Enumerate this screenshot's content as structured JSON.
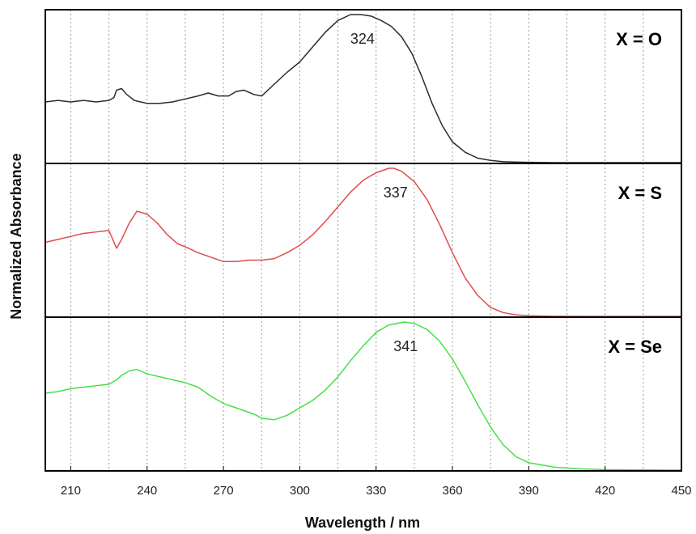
{
  "chart_data": {
    "type": "line",
    "xlabel": "Wavelength / nm",
    "ylabel": "Normalized Absorbance",
    "xlim": [
      200,
      450
    ],
    "xticks": [
      210,
      240,
      270,
      300,
      330,
      360,
      390,
      420,
      450
    ],
    "grid": {
      "vertical_dotted": true,
      "x_positions": [
        210,
        225,
        240,
        255,
        270,
        285,
        300,
        315,
        330,
        345,
        360,
        375,
        390,
        405,
        420,
        435
      ]
    },
    "panels": [
      {
        "label": "X = O",
        "color": "#2b2b2b",
        "peak_label": "324",
        "peak_x": 324,
        "ylim": [
          0,
          1
        ],
        "x": [
          200,
          205,
          210,
          215,
          220,
          225,
          227,
          228,
          230,
          232,
          235,
          240,
          245,
          250,
          255,
          260,
          264,
          268,
          272,
          275,
          278,
          282,
          285,
          290,
          295,
          300,
          305,
          310,
          315,
          320,
          324,
          328,
          332,
          336,
          340,
          344,
          348,
          352,
          356,
          360,
          365,
          370,
          375,
          380,
          390,
          400,
          420,
          450
        ],
        "y": [
          0.41,
          0.42,
          0.41,
          0.42,
          0.41,
          0.42,
          0.44,
          0.49,
          0.5,
          0.46,
          0.42,
          0.4,
          0.4,
          0.41,
          0.43,
          0.45,
          0.47,
          0.45,
          0.45,
          0.48,
          0.49,
          0.46,
          0.45,
          0.53,
          0.61,
          0.68,
          0.78,
          0.88,
          0.96,
          1.0,
          1.0,
          0.99,
          0.96,
          0.92,
          0.85,
          0.74,
          0.58,
          0.4,
          0.25,
          0.14,
          0.07,
          0.03,
          0.015,
          0.006,
          0.002,
          0.0,
          0.0,
          0.0
        ]
      },
      {
        "label": "X = S",
        "color": "#e04c4c",
        "peak_label": "337",
        "peak_x": 337,
        "ylim": [
          0,
          1
        ],
        "x": [
          200,
          205,
          210,
          215,
          220,
          225,
          227,
          228,
          230,
          233,
          236,
          240,
          244,
          248,
          252,
          255,
          260,
          265,
          270,
          275,
          280,
          285,
          290,
          295,
          300,
          305,
          310,
          315,
          320,
          325,
          330,
          335,
          337,
          340,
          345,
          350,
          355,
          360,
          365,
          370,
          375,
          380,
          385,
          390,
          400,
          420,
          450
        ],
        "y": [
          0.5,
          0.52,
          0.54,
          0.56,
          0.57,
          0.58,
          0.5,
          0.46,
          0.52,
          0.63,
          0.71,
          0.69,
          0.63,
          0.55,
          0.49,
          0.47,
          0.43,
          0.4,
          0.37,
          0.37,
          0.38,
          0.38,
          0.39,
          0.43,
          0.48,
          0.55,
          0.64,
          0.74,
          0.84,
          0.92,
          0.97,
          1.0,
          1.0,
          0.98,
          0.91,
          0.79,
          0.62,
          0.43,
          0.26,
          0.14,
          0.06,
          0.025,
          0.01,
          0.004,
          0.001,
          0.0,
          0.0
        ]
      },
      {
        "label": "X = Se",
        "color": "#46e046",
        "peak_label": "341",
        "peak_x": 341,
        "ylim": [
          0,
          1
        ],
        "x": [
          200,
          205,
          210,
          215,
          220,
          225,
          228,
          230,
          233,
          236,
          240,
          245,
          250,
          255,
          260,
          265,
          270,
          275,
          280,
          283,
          285,
          290,
          295,
          300,
          305,
          310,
          315,
          320,
          325,
          330,
          335,
          341,
          345,
          350,
          355,
          360,
          365,
          370,
          375,
          380,
          385,
          390,
          400,
          410,
          420,
          450
        ],
        "y": [
          0.52,
          0.53,
          0.55,
          0.56,
          0.57,
          0.58,
          0.61,
          0.64,
          0.67,
          0.68,
          0.65,
          0.63,
          0.61,
          0.59,
          0.56,
          0.5,
          0.45,
          0.42,
          0.39,
          0.37,
          0.35,
          0.34,
          0.37,
          0.42,
          0.47,
          0.54,
          0.63,
          0.74,
          0.84,
          0.93,
          0.98,
          1.0,
          0.99,
          0.95,
          0.87,
          0.75,
          0.6,
          0.44,
          0.29,
          0.17,
          0.09,
          0.05,
          0.02,
          0.008,
          0.003,
          0.0
        ]
      }
    ]
  }
}
